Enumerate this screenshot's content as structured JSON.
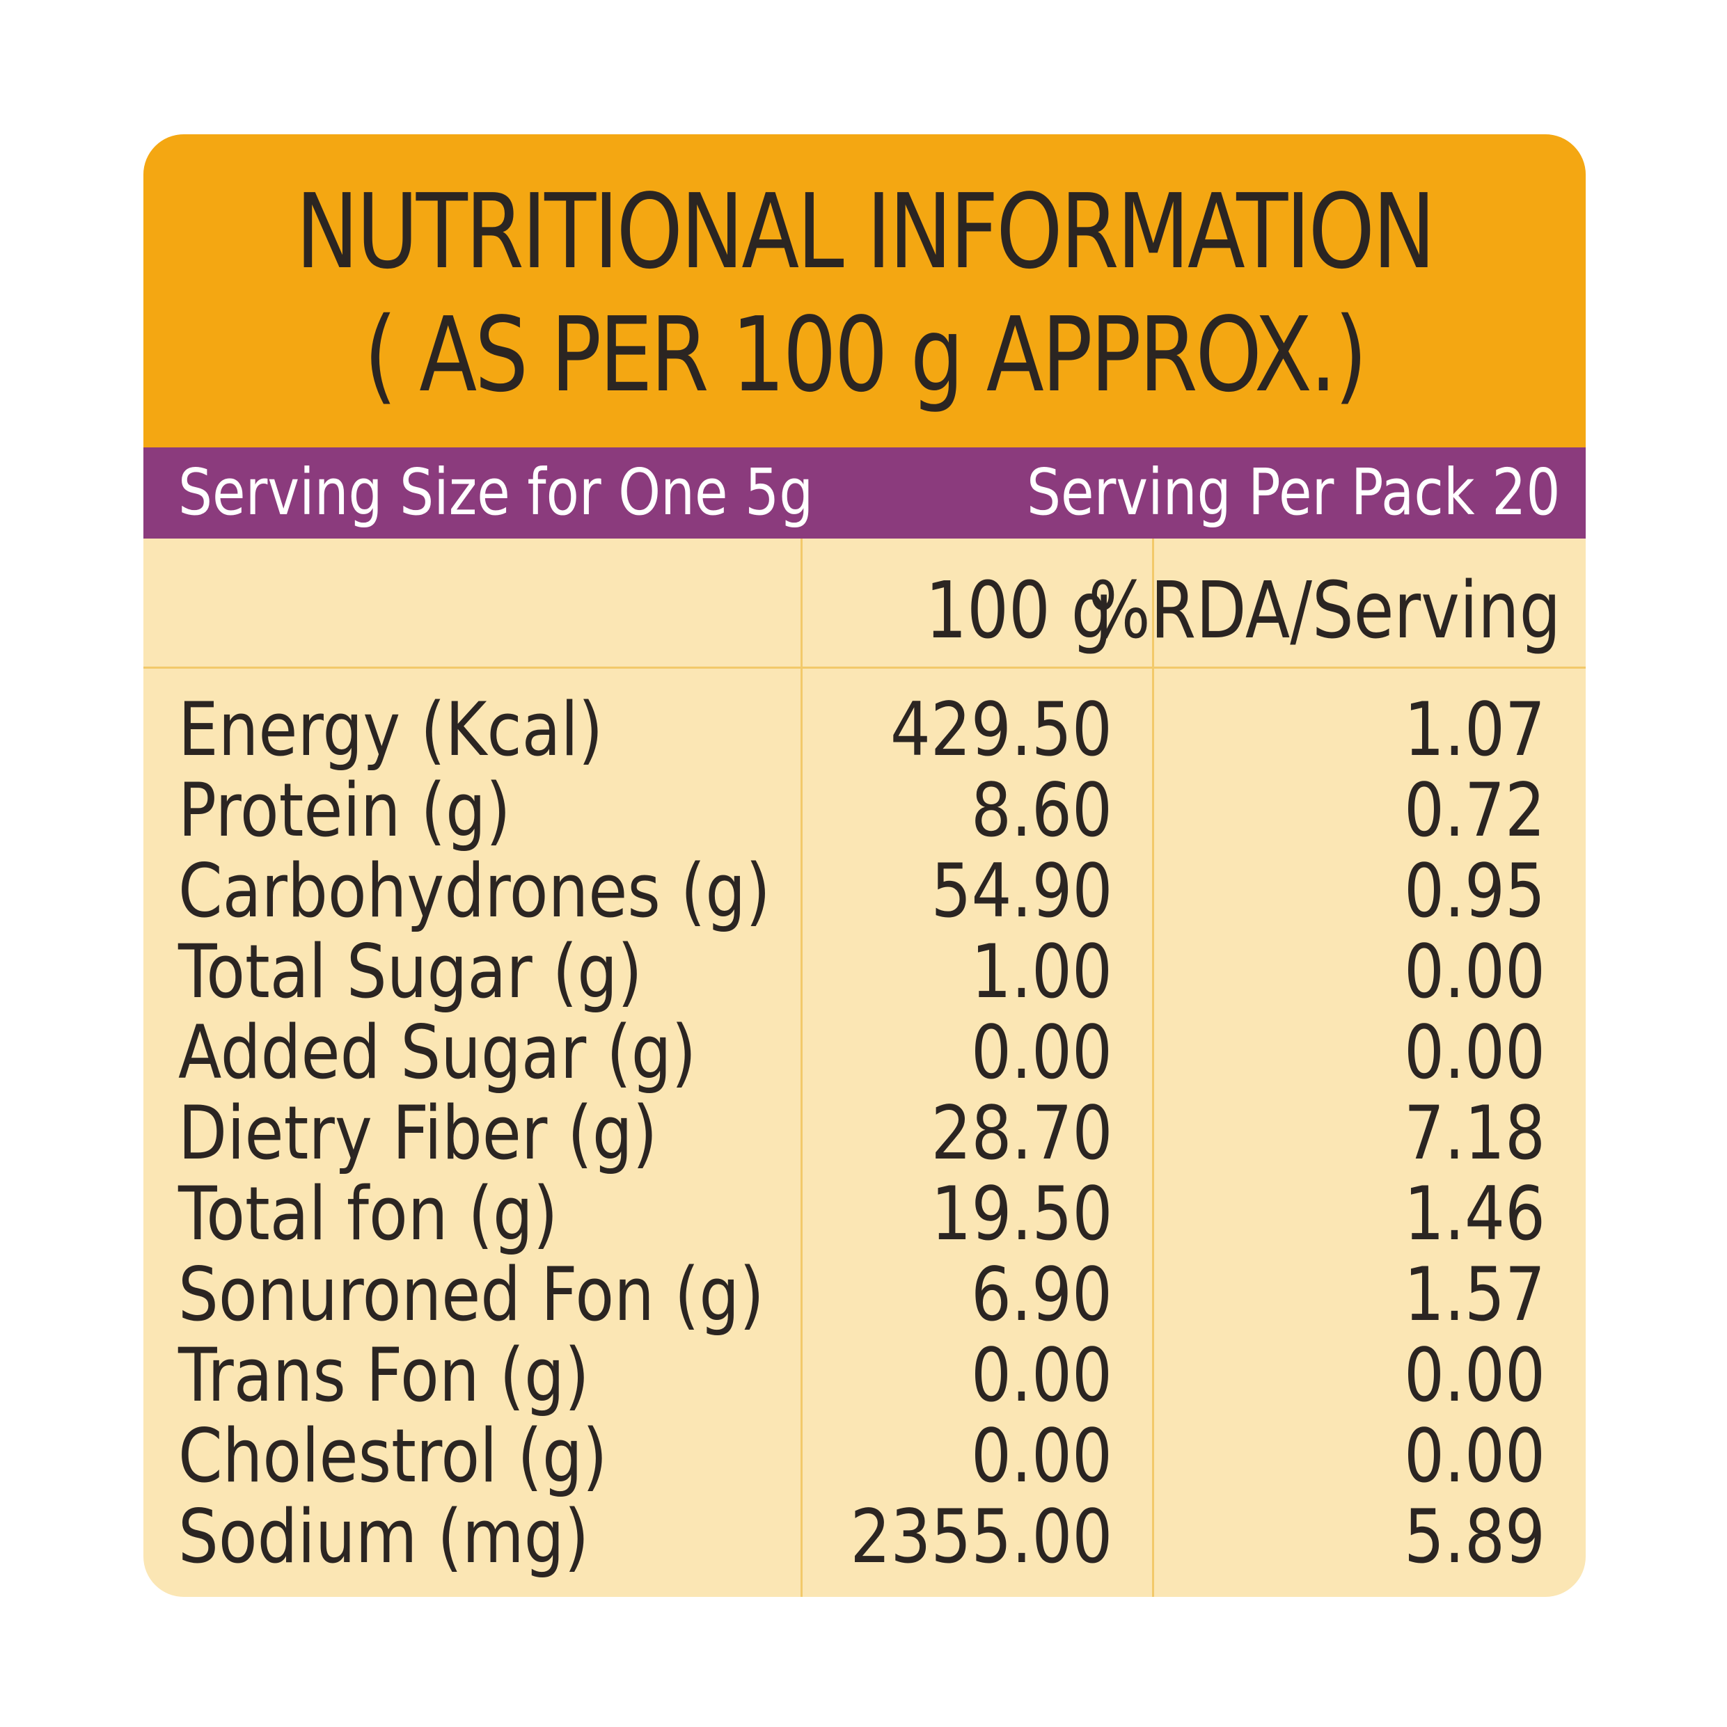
{
  "header": {
    "title_line1": "NUTRITIONAL INFORMATION",
    "title_line2": "( AS PER 100 g APPROX.)"
  },
  "serving": {
    "size": "Serving Size for One 5g",
    "per_pack": "Serving Per Pack 20"
  },
  "columns": {
    "per_100g": "100 g",
    "rda": "%RDA/Serving"
  },
  "rows": [
    {
      "name": "Energy (Kcal)",
      "per_100g": "429.50",
      "rda": "1.07"
    },
    {
      "name": "Protein (g)",
      "per_100g": "8.60",
      "rda": "0.72"
    },
    {
      "name": "Carbohydrones (g)",
      "per_100g": "54.90",
      "rda": "0.95"
    },
    {
      "name": "Total Sugar (g)",
      "per_100g": "1.00",
      "rda": "0.00"
    },
    {
      "name": "Added Sugar (g)",
      "per_100g": "0.00",
      "rda": "0.00"
    },
    {
      "name": "Dietry Fiber (g)",
      "per_100g": "28.70",
      "rda": "7.18"
    },
    {
      "name": "Total fon (g)",
      "per_100g": "19.50",
      "rda": "1.46"
    },
    {
      "name": "Sonuroned Fon (g)",
      "per_100g": "6.90",
      "rda": "1.57"
    },
    {
      "name": "Trans Fon (g)",
      "per_100g": "0.00",
      "rda": "0.00"
    },
    {
      "name": "Cholestrol (g)",
      "per_100g": "0.00",
      "rda": "0.00"
    },
    {
      "name": "Sodium (mg)",
      "per_100g": "2355.00",
      "rda": "5.89"
    }
  ],
  "colors": {
    "header_bg": "#f4a712",
    "serving_bar_bg": "#8b3b7d",
    "table_bg": "#fbe6b4",
    "text": "#2b2522",
    "grid_lines": "#f2c96a"
  }
}
